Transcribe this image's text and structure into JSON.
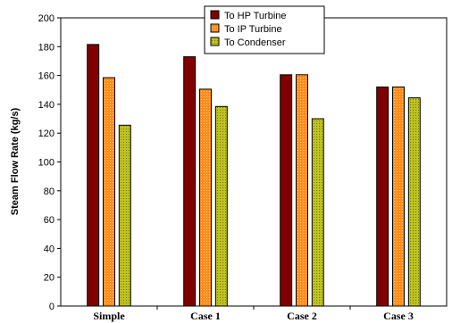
{
  "chart_data": {
    "type": "bar",
    "categories": [
      "Simple",
      "Case 1",
      "Case 2",
      "Case 3"
    ],
    "series": [
      {
        "name": "To HP Turbine",
        "values": [
          181.5,
          173,
          160.5,
          152
        ],
        "color": "#800000",
        "pattern": "solid"
      },
      {
        "name": "To IP Turbine",
        "values": [
          158.5,
          150.5,
          160.5,
          152
        ],
        "color": "#FF8C1A",
        "pattern": "dots"
      },
      {
        "name": "To Condenser",
        "values": [
          125.5,
          138.5,
          130,
          144.5
        ],
        "color": "#BFC21F",
        "pattern": "dots"
      }
    ],
    "title": "",
    "xlabel": "",
    "ylabel": "Steam Flow Rate (kg/s)",
    "ylim": [
      0,
      200
    ],
    "yticks": [
      "0",
      "20",
      "40",
      "60",
      "80",
      "100",
      "120",
      "140",
      "160",
      "180",
      "200"
    ],
    "grid": false,
    "legend_position": "top-center"
  }
}
